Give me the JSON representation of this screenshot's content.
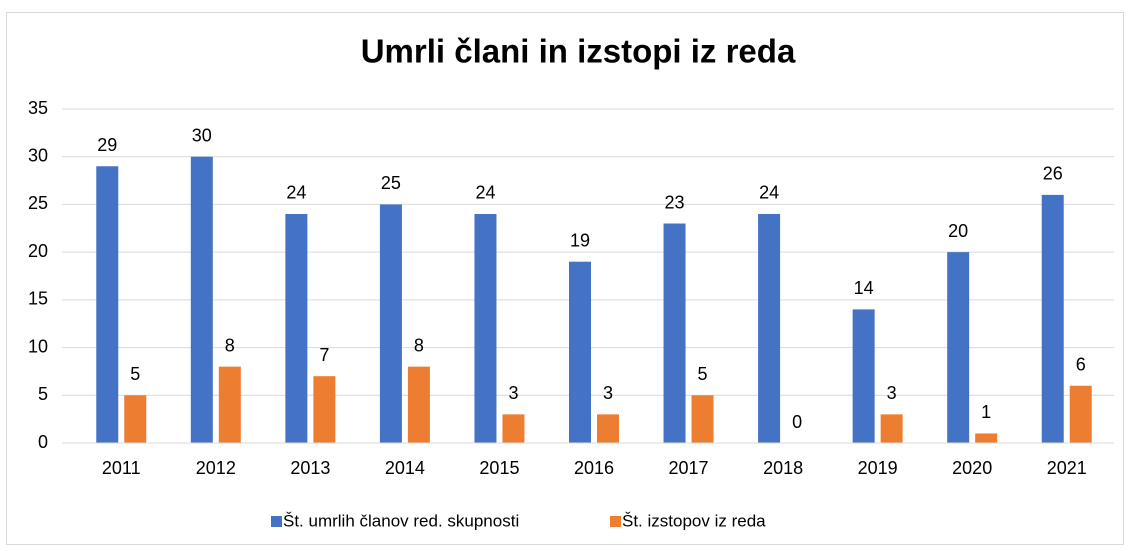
{
  "chart_data": {
    "type": "bar",
    "title": "Umrli člani in izstopi iz reda",
    "categories": [
      "2011",
      "2012",
      "2013",
      "2014",
      "2015",
      "2016",
      "2017",
      "2018",
      "2019",
      "2020",
      "2021"
    ],
    "series": [
      {
        "name": "Št. umrlih članov red. skupnosti",
        "color": "#4472c4",
        "values": [
          29,
          30,
          24,
          25,
          24,
          19,
          23,
          24,
          14,
          20,
          26
        ]
      },
      {
        "name": "Št. izstopov iz reda",
        "color": "#ed7d31",
        "values": [
          5,
          8,
          7,
          8,
          3,
          3,
          5,
          0,
          3,
          1,
          6
        ]
      }
    ],
    "ylim": [
      0,
      35
    ],
    "yticks": [
      0,
      5,
      10,
      15,
      20,
      25,
      30,
      35
    ],
    "grid": true,
    "legend": "bottom",
    "data_labels": true
  }
}
